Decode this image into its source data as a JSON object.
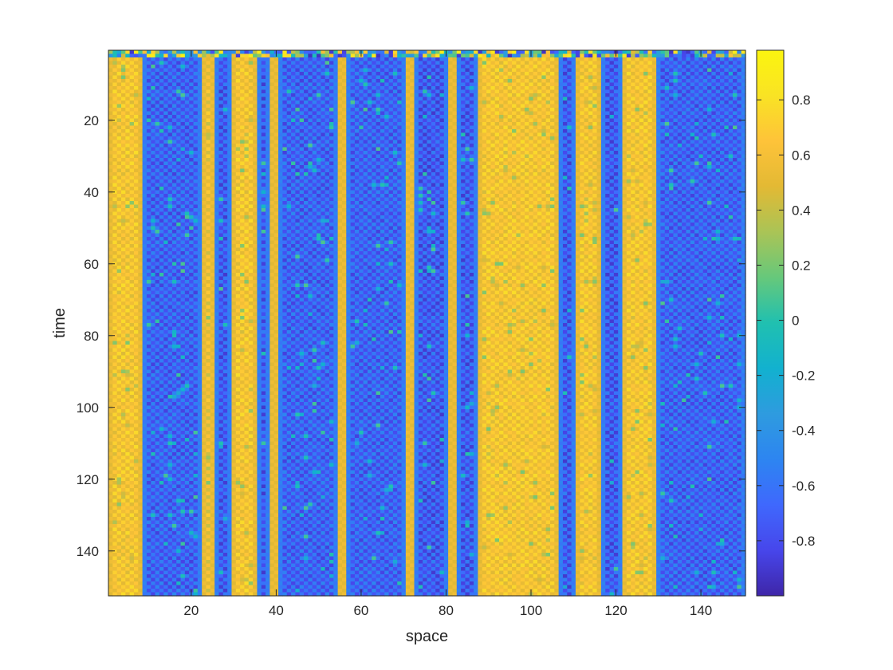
{
  "chart_data": {
    "type": "heatmap",
    "title": "",
    "xlabel": "space",
    "ylabel": "time",
    "xlim": [
      0.5,
      150.5
    ],
    "ylim": [
      0.5,
      152.5
    ],
    "y_reversed": true,
    "grid": false,
    "x_ticks": [
      20,
      40,
      60,
      80,
      100,
      120,
      140
    ],
    "y_ticks": [
      20,
      40,
      60,
      80,
      100,
      120,
      140
    ],
    "n_columns": 150,
    "n_rows": 152,
    "colormap": "parula",
    "colormap_stops": [
      "#3e26a8",
      "#4746eb",
      "#3f68fd",
      "#2d85f1",
      "#2e9bdf",
      "#12b1cf",
      "#20c0b0",
      "#66c87b",
      "#aac456",
      "#e3b934",
      "#fec339",
      "#f9e324",
      "#fbf50f"
    ],
    "colorbar": {
      "range": [
        -1,
        0.98
      ],
      "ticks": [
        -0.8,
        -0.6,
        -0.4,
        -0.2,
        0,
        0.2,
        0.4,
        0.6,
        0.8
      ],
      "tick_labels": [
        "-0.8",
        "-0.6",
        "-0.4",
        "-0.2",
        "0",
        "0.2",
        "0.4",
        "0.6",
        "0.8"
      ],
      "location": "right"
    },
    "column_bands": [
      {
        "x_start": 1,
        "x_end": 8,
        "value": 0.62
      },
      {
        "x_start": 9,
        "x_end": 22,
        "value": -0.68
      },
      {
        "x_start": 23,
        "x_end": 25,
        "value": 0.55
      },
      {
        "x_start": 26,
        "x_end": 29,
        "value": -0.72
      },
      {
        "x_start": 30,
        "x_end": 35,
        "value": 0.62
      },
      {
        "x_start": 36,
        "x_end": 38,
        "value": -0.72
      },
      {
        "x_start": 39,
        "x_end": 40,
        "value": 0.55
      },
      {
        "x_start": 41,
        "x_end": 54,
        "value": -0.68
      },
      {
        "x_start": 55,
        "x_end": 56,
        "value": 0.55
      },
      {
        "x_start": 57,
        "x_end": 70,
        "value": -0.68
      },
      {
        "x_start": 71,
        "x_end": 72,
        "value": 0.55
      },
      {
        "x_start": 73,
        "x_end": 80,
        "value": -0.72
      },
      {
        "x_start": 81,
        "x_end": 82,
        "value": 0.55
      },
      {
        "x_start": 83,
        "x_end": 87,
        "value": -0.72
      },
      {
        "x_start": 88,
        "x_end": 106,
        "value": 0.62
      },
      {
        "x_start": 107,
        "x_end": 110,
        "value": -0.72
      },
      {
        "x_start": 111,
        "x_end": 116,
        "value": 0.62
      },
      {
        "x_start": 117,
        "x_end": 121,
        "value": -0.72
      },
      {
        "x_start": 122,
        "x_end": 129,
        "value": 0.62
      },
      {
        "x_start": 130,
        "x_end": 150,
        "value": -0.68
      }
    ]
  }
}
